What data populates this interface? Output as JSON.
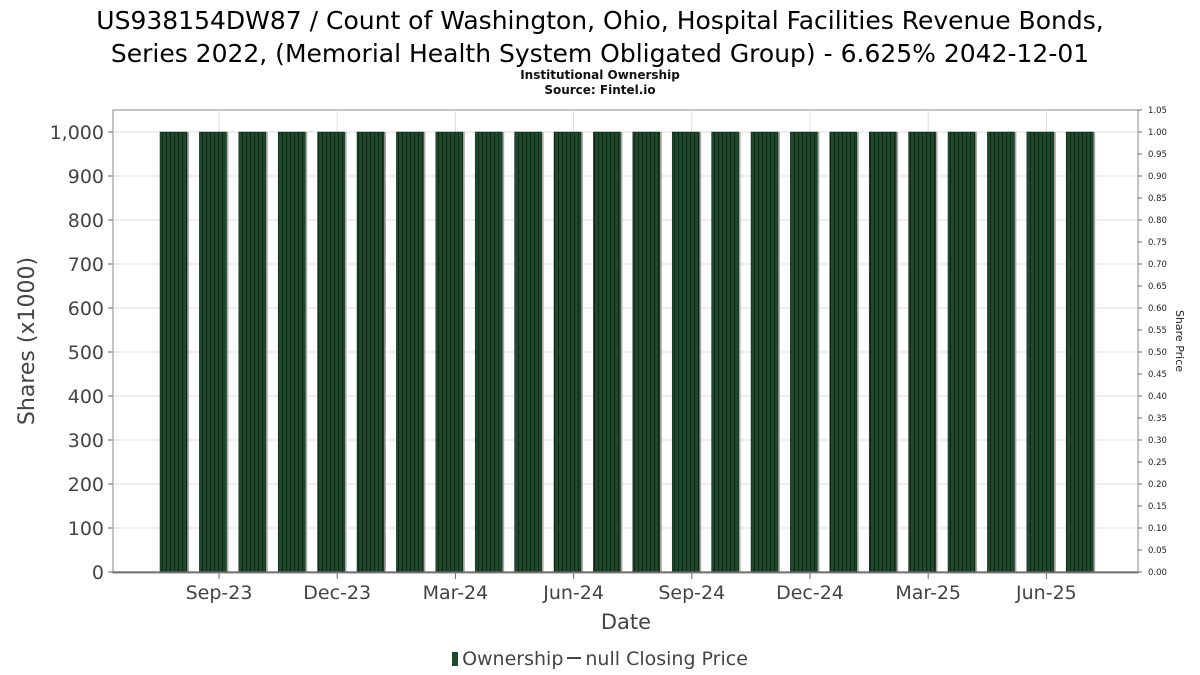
{
  "chart_data": {
    "type": "bar",
    "title_lines": [
      "US938154DW87 / Count of Washington, Ohio, Hospital Facilities Revenue Bonds,",
      "Series 2022, (Memorial Health System Obligated Group) - 6.625% 2042-12-01"
    ],
    "subtitle_lines": [
      "Institutional Ownership",
      "Source: Fintel.io"
    ],
    "xlabel": "Date",
    "ylabel": "Shares (x1000)",
    "y2label": "Share Price",
    "ylim": [
      0,
      1050
    ],
    "y2lim": [
      0,
      1.05
    ],
    "yticks": [
      "0",
      "100",
      "200",
      "300",
      "400",
      "500",
      "600",
      "700",
      "800",
      "900",
      "1,000"
    ],
    "ytick_values": [
      0,
      100,
      200,
      300,
      400,
      500,
      600,
      700,
      800,
      900,
      1000
    ],
    "y2ticks": [
      "0.00",
      "0.05",
      "0.10",
      "0.15",
      "0.20",
      "0.25",
      "0.30",
      "0.35",
      "0.40",
      "0.45",
      "0.50",
      "0.55",
      "0.60",
      "0.65",
      "0.70",
      "0.75",
      "0.80",
      "0.85",
      "0.90",
      "0.95",
      "1.00",
      "1.05"
    ],
    "xticks": [
      "Sep-23",
      "Dec-23",
      "Mar-24",
      "Jun-24",
      "Sep-24",
      "Dec-24",
      "Mar-25",
      "Jun-25"
    ],
    "grid": true,
    "series": [
      {
        "name": "Ownership",
        "color": "#1d4a2a",
        "values": [
          1000,
          1000,
          1000,
          1000,
          1000,
          1000,
          1000,
          1000,
          1000,
          1000,
          1000,
          1000,
          1000,
          1000,
          1000,
          1000,
          1000,
          1000,
          1000,
          1000,
          1000,
          1000,
          1000,
          1000
        ]
      }
    ],
    "legend": {
      "position": "bottom",
      "ownership_label": "Ownership",
      "price_label": "null Closing Price"
    }
  }
}
